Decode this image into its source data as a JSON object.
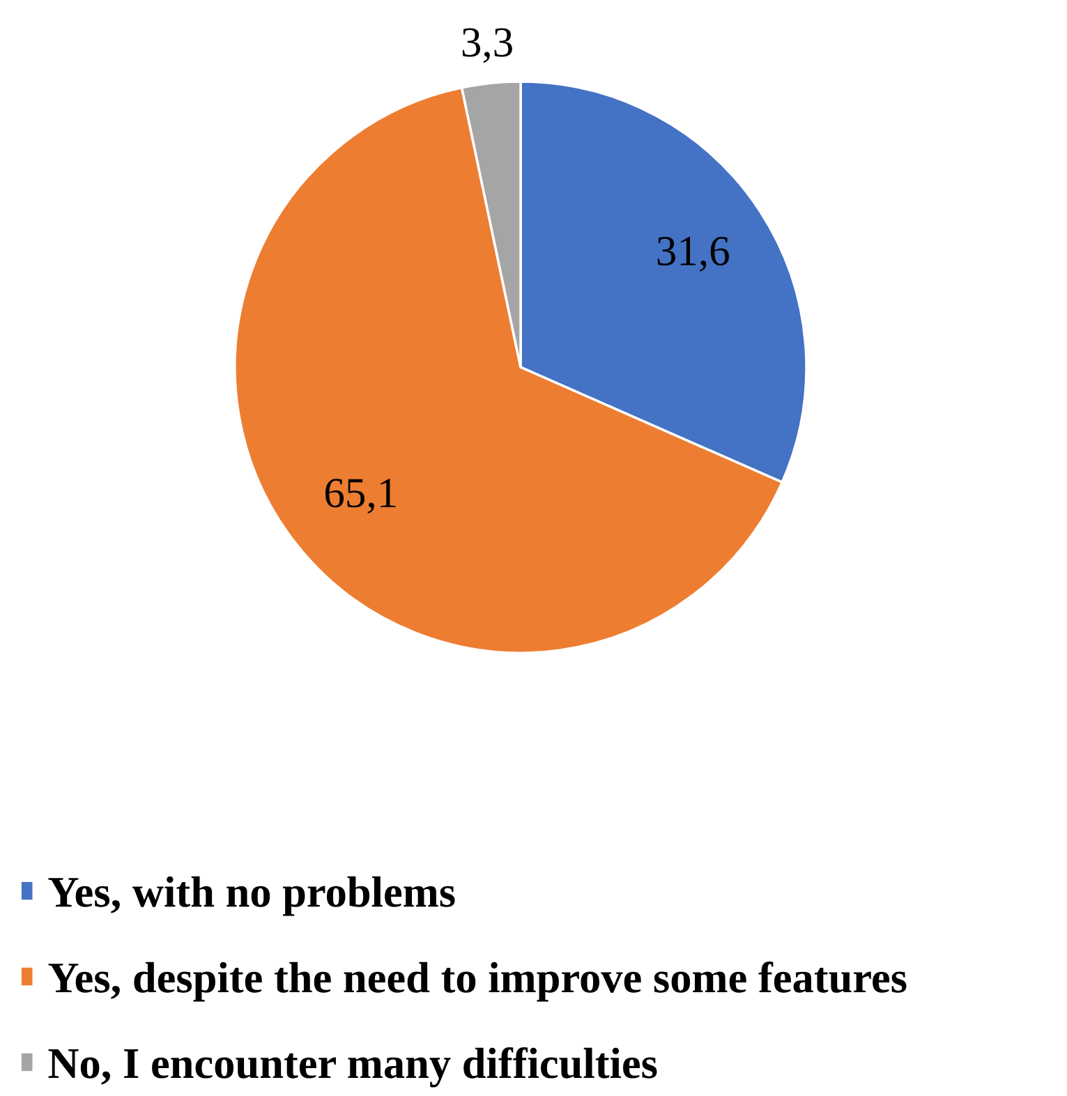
{
  "chart_data": {
    "type": "pie",
    "categories": [
      "Yes, with no problems",
      "Yes, despite the need to improve some features",
      "No, I encounter many difficulties"
    ],
    "values": [
      31.6,
      65.1,
      3.3
    ],
    "colors": [
      "#4472c4",
      "#ed7d31",
      "#a5a5a5"
    ],
    "value_labels": [
      "31,6",
      "65,1",
      "3,3"
    ],
    "legend": "bottom"
  }
}
